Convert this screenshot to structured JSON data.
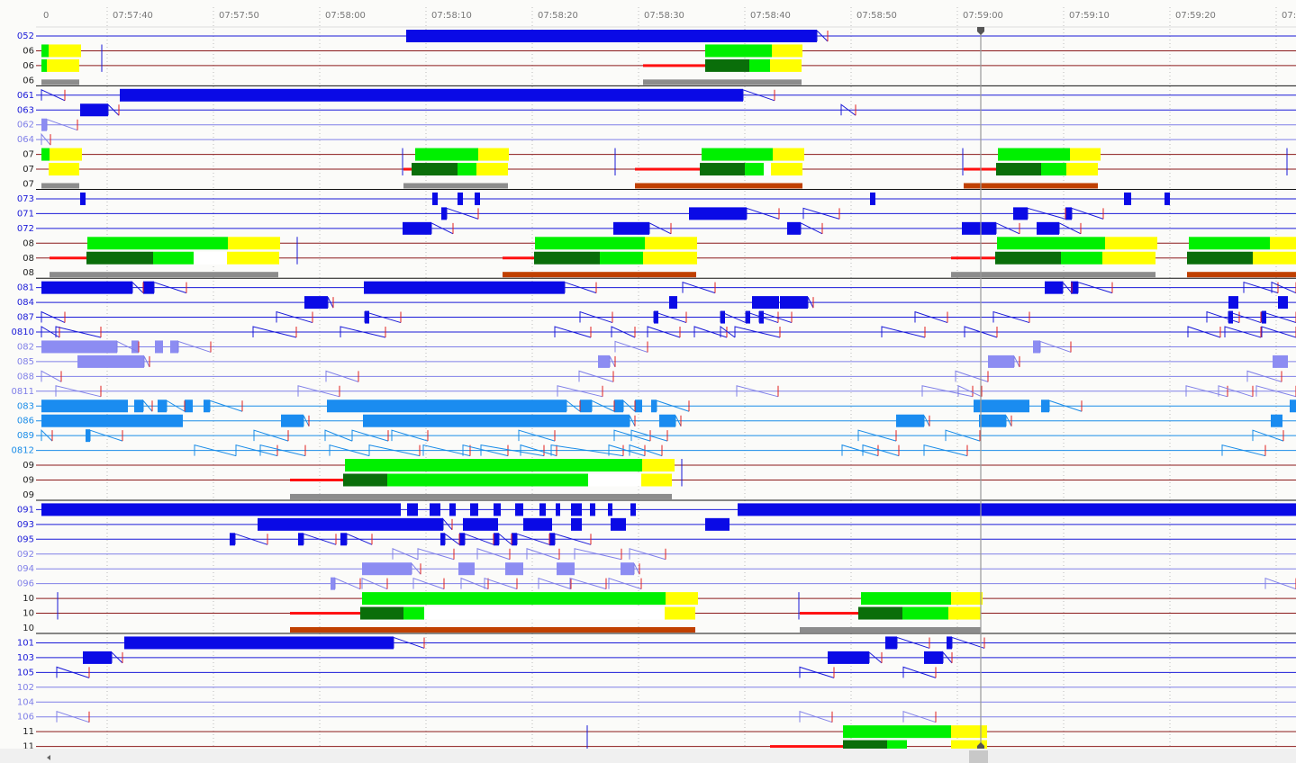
{
  "axis": {
    "time_labels": [
      "0",
      "07:57:40",
      "07:57:50",
      "07:58:00",
      "07:58:10",
      "07:58:20",
      "07:58:30",
      "07:58:40",
      "07:58:50",
      "07:59:00",
      "07:59:10",
      "07:59:20",
      "07:"
    ]
  },
  "rows": [
    "052",
    "06",
    "06",
    "06",
    "061",
    "063",
    "062",
    "064",
    "07",
    "07",
    "07",
    "073",
    "071",
    "072",
    "08",
    "08",
    "08",
    "081",
    "084",
    "087",
    "0810",
    "082",
    "085",
    "088",
    "0811",
    "083",
    "086",
    "089",
    "0812",
    "09",
    "09",
    "09",
    "091",
    "093",
    "095",
    "092",
    "094",
    "096",
    "10",
    "10",
    "10",
    "101",
    "103",
    "105",
    "102",
    "104",
    "106",
    "11",
    "11"
  ]
}
